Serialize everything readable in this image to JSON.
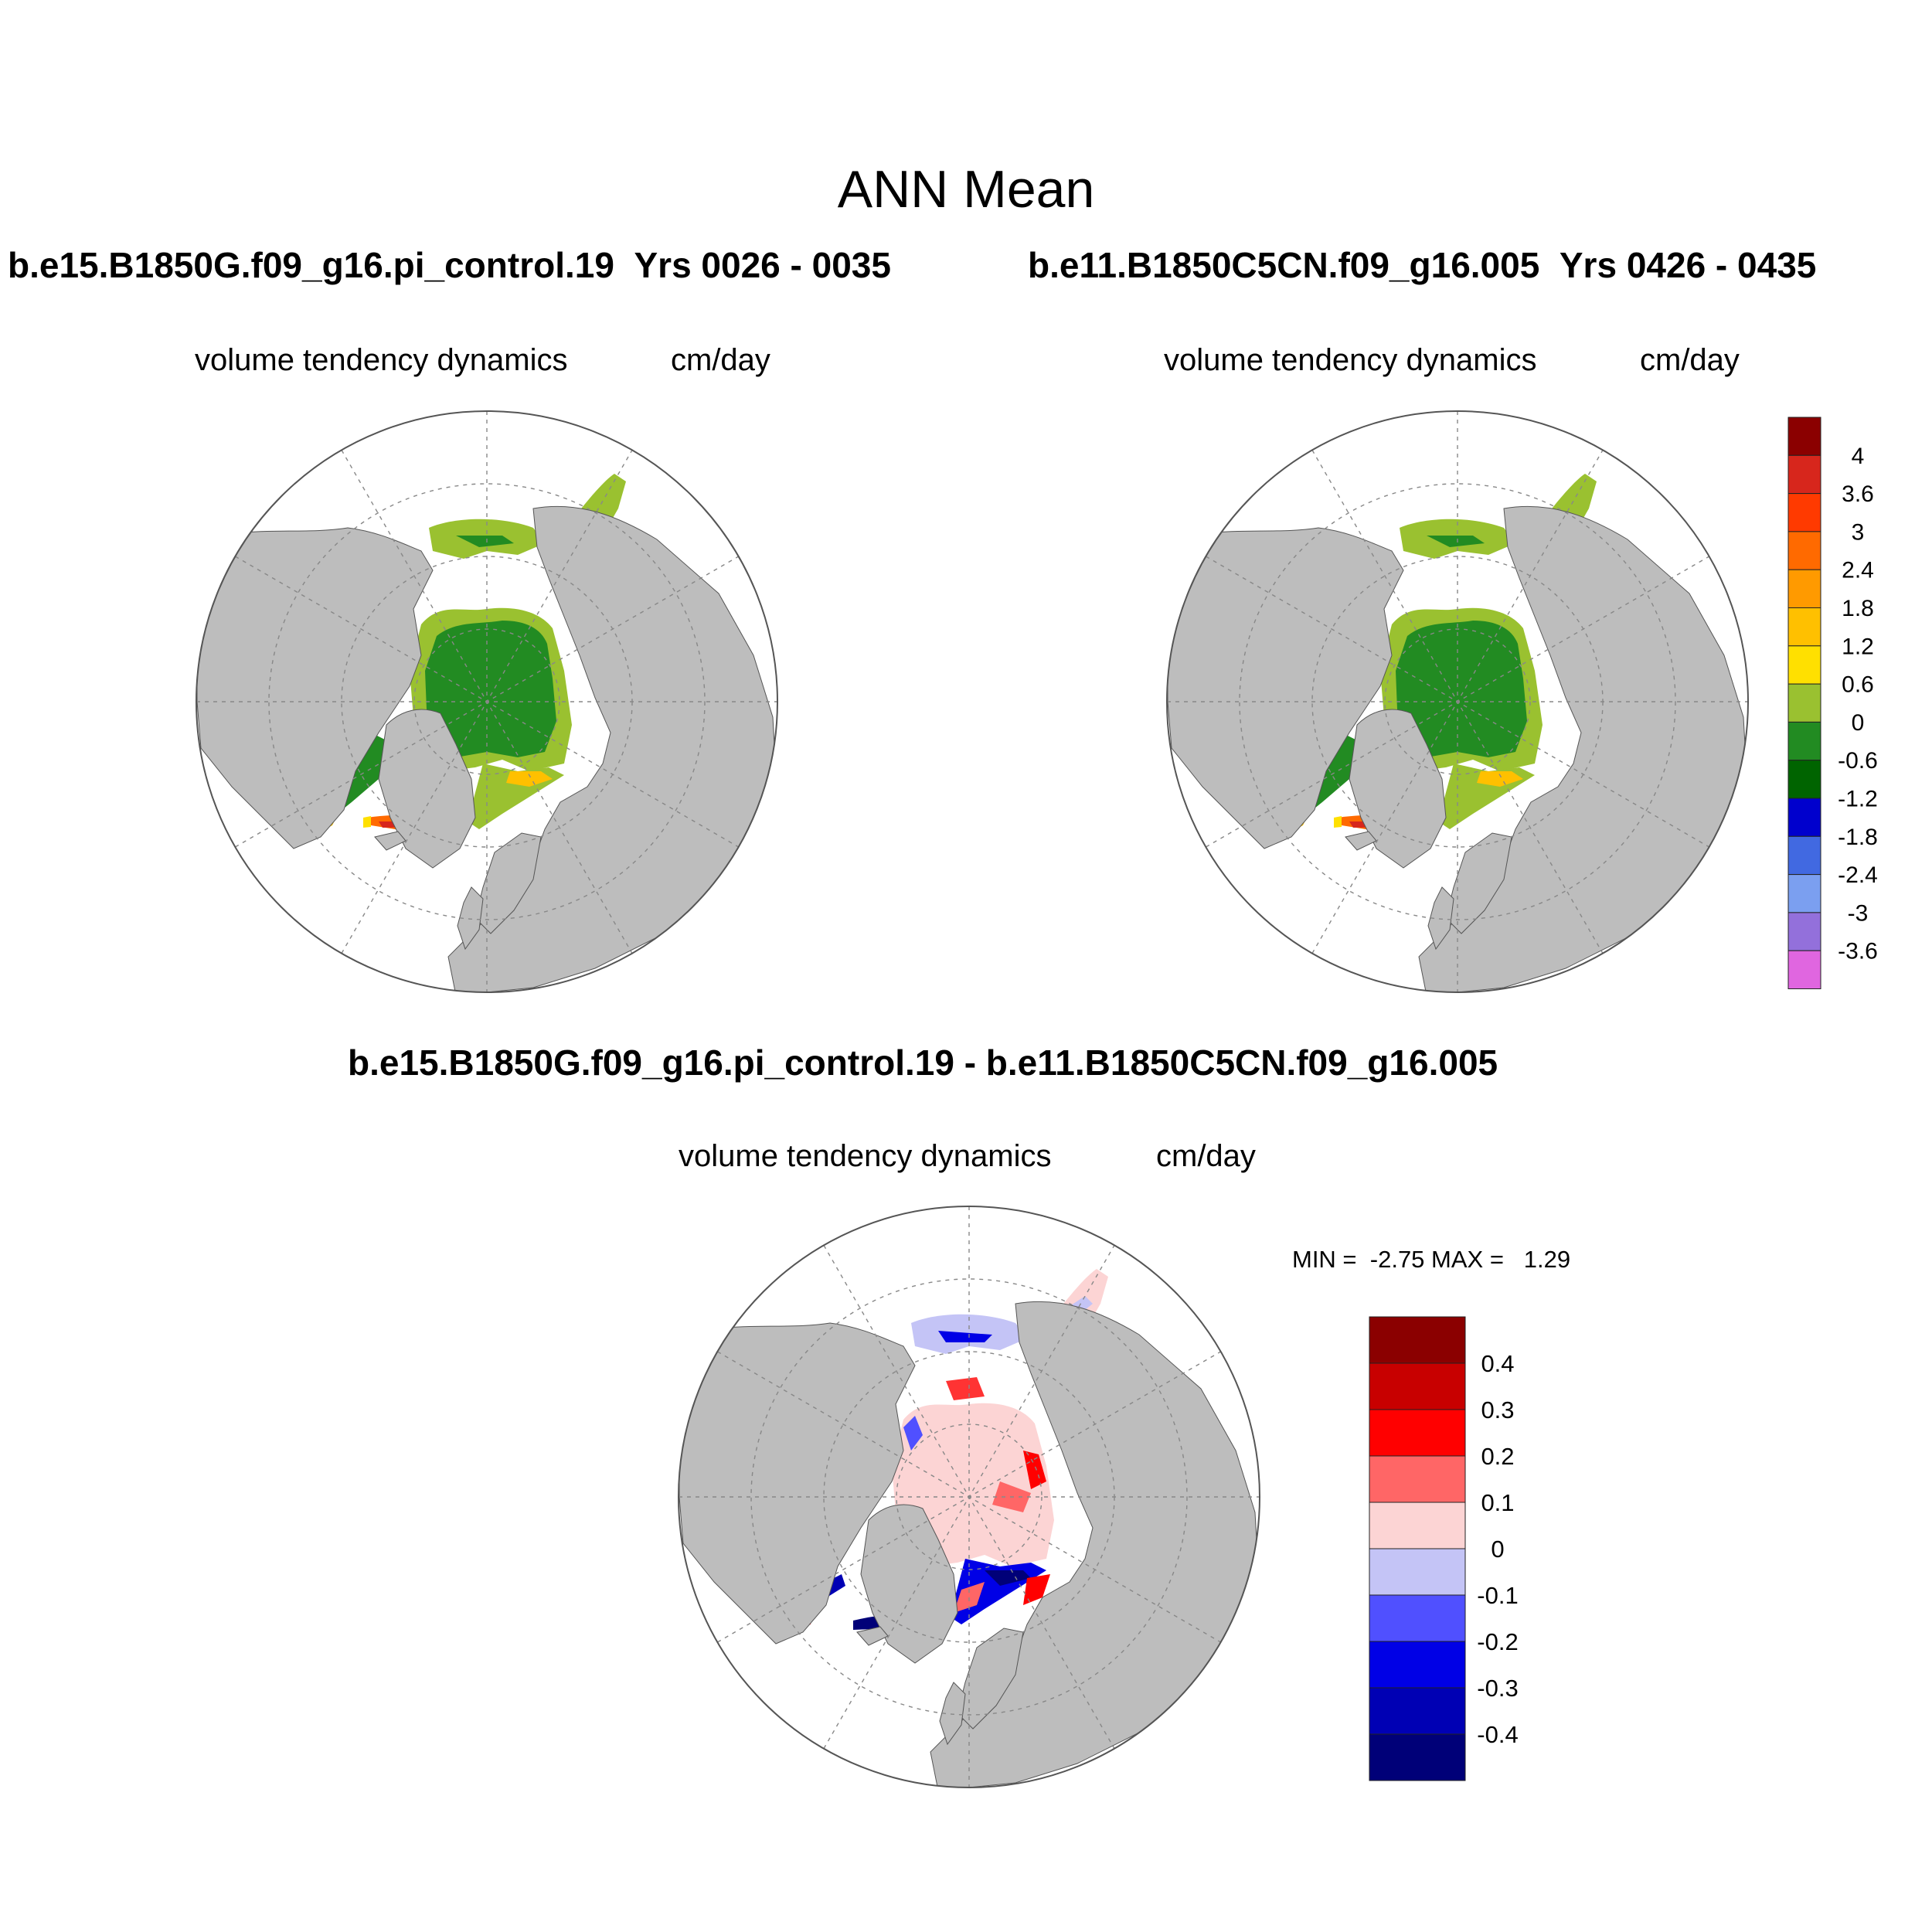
{
  "page": {
    "title": "ANN Mean",
    "diff_title": "b.e15.B1850G.f09_g16.pi_control.19 - b.e11.B1850C5CN.f09_g16.005"
  },
  "panels": [
    {
      "case": "b.e15.B1850G.f09_g16.pi_control.19",
      "years": "Yrs 0026 - 0035",
      "variable": "volume tendency dynamics",
      "units": "cm/day"
    },
    {
      "case": "b.e11.B1850C5CN.f09_g16.005",
      "years": "Yrs 0426 - 0435",
      "variable": "volume tendency dynamics",
      "units": "cm/day"
    },
    {
      "variable": "volume tendency dynamics",
      "units": "cm/day",
      "min_label": "MIN =  -2.75 MAX =   1.29"
    }
  ],
  "colorbar_main": {
    "labels": [
      "4",
      "3.6",
      "3",
      "2.4",
      "1.8",
      "1.2",
      "0.6",
      "0",
      "-0.6",
      "-1.2",
      "-1.8",
      "-2.4",
      "-3",
      "-3.6"
    ],
    "colors_top_to_bottom": [
      "#8b0000",
      "#d7261c",
      "#ff3a00",
      "#ff6a00",
      "#ff9a00",
      "#ffc000",
      "#ffe000",
      "#9ac130",
      "#228b22",
      "#006400",
      "#0000cd",
      "#4169e1",
      "#7b9ff0",
      "#9370db",
      "#e066e0"
    ]
  },
  "colorbar_diff": {
    "labels": [
      "0.4",
      "0.3",
      "0.2",
      "0.1",
      "0",
      "-0.1",
      "-0.2",
      "-0.3",
      "-0.4"
    ],
    "colors_top_to_bottom": [
      "#8b0000",
      "#c80000",
      "#ff0000",
      "#ff6666",
      "#fcd4d4",
      "#c4c4f6",
      "#5050ff",
      "#0000e6",
      "#0000b4",
      "#000078"
    ]
  },
  "map_colors": {
    "land": "#bdbdbd",
    "ocean_background": "#ffffff",
    "ice_light": "#9ac130",
    "ice_dark": "#228b22",
    "diff_neutral": "#fcd4d4",
    "diff_neg": "#c4c4f6"
  }
}
